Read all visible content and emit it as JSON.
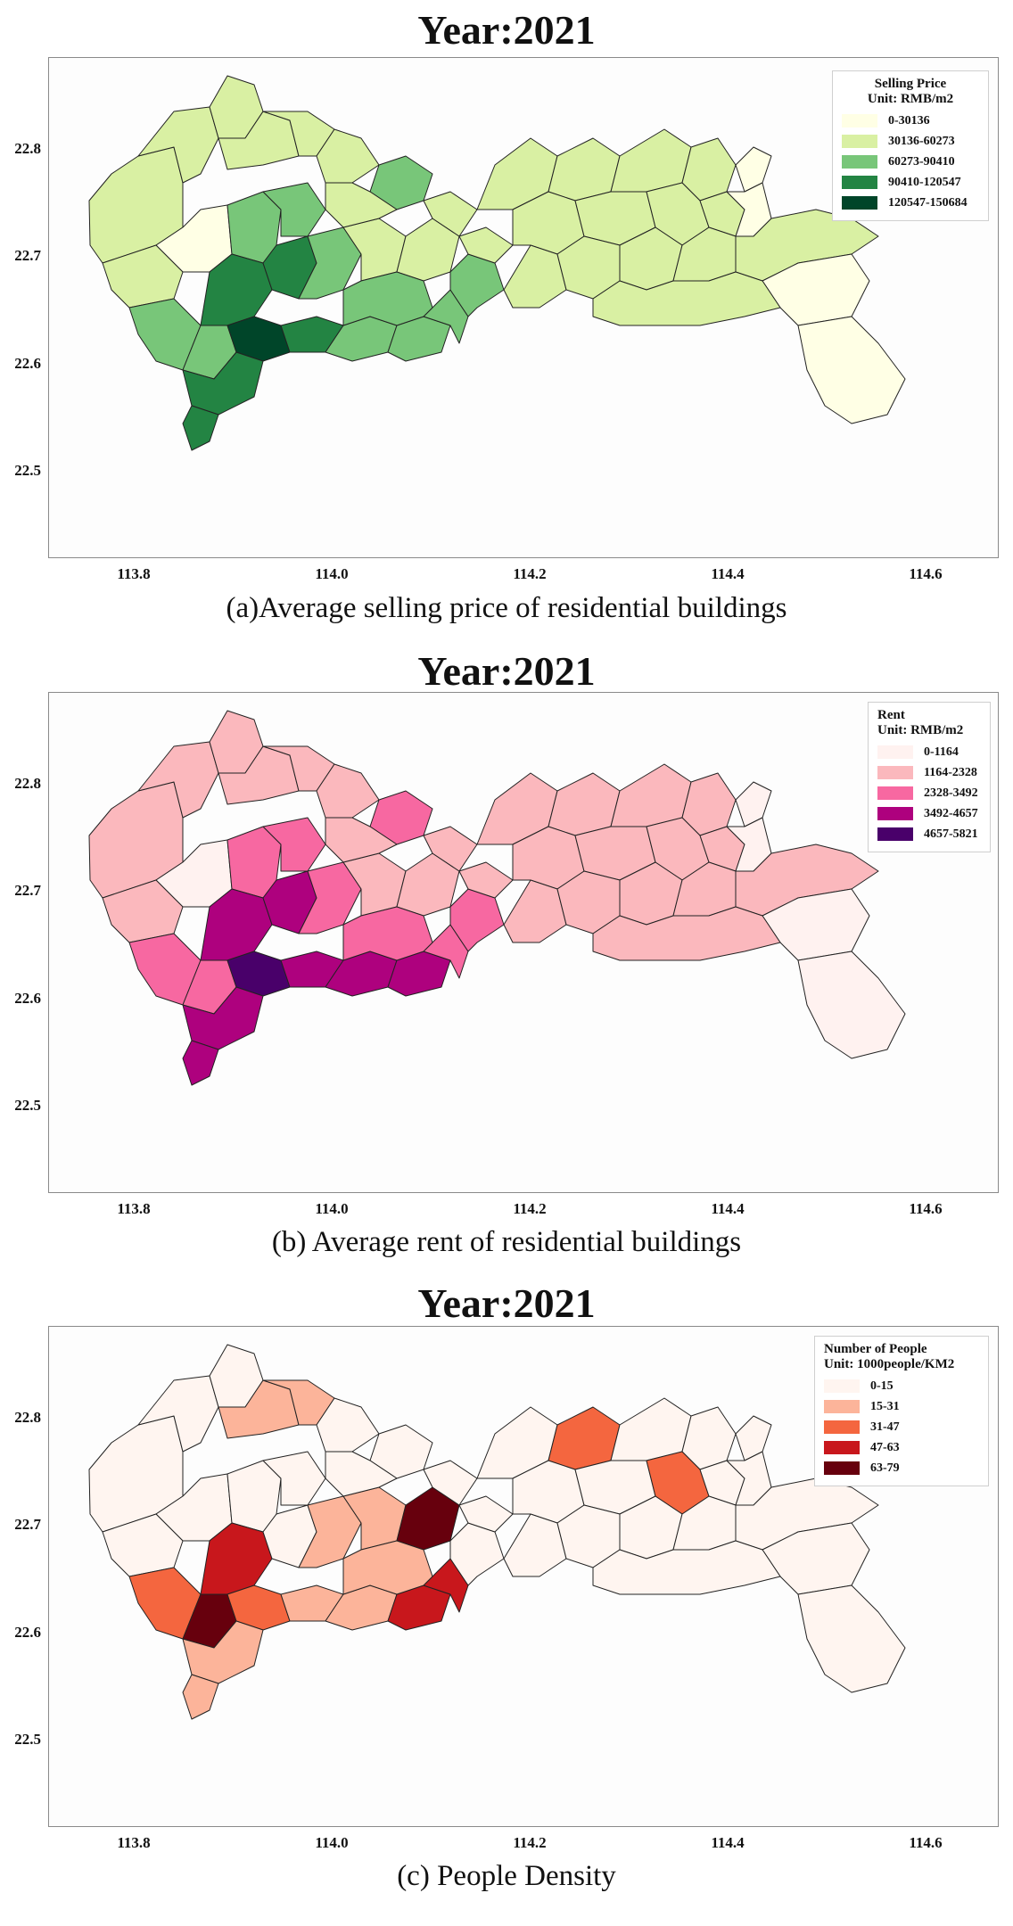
{
  "colors": {
    "boundary": "#222222"
  },
  "maps": [
    {
      "title": "Year:2021",
      "caption": "(a)Average selling price of residential buildings",
      "legend": {
        "title_line1": "Selling Price",
        "title_line2": "Unit: RMB/m2",
        "classes": [
          {
            "label": "0-30136",
            "color": "#ffffe5"
          },
          {
            "label": "30136-60273",
            "color": "#d9f0a3"
          },
          {
            "label": "60273-90410",
            "color": "#78c679"
          },
          {
            "label": "90410-120547",
            "color": "#238443"
          },
          {
            "label": "120547-150684",
            "color": "#004529"
          }
        ]
      },
      "x_ticks": [
        "113.8",
        "114.0",
        "114.2",
        "114.4",
        "114.6"
      ],
      "y_ticks": [
        "22.8",
        "22.7",
        "22.6",
        "22.5"
      ]
    },
    {
      "title": "Year:2021",
      "caption": "(b) Average rent of residential buildings",
      "legend": {
        "title_line1": "Rent",
        "title_line2": "Unit: RMB/m2",
        "classes": [
          {
            "label": "0-1164",
            "color": "#fff2f0"
          },
          {
            "label": "1164-2328",
            "color": "#fbb8bd"
          },
          {
            "label": "2328-3492",
            "color": "#f768a1"
          },
          {
            "label": "3492-4657",
            "color": "#ae017e"
          },
          {
            "label": "4657-5821",
            "color": "#49006a"
          }
        ]
      },
      "x_ticks": [
        "113.8",
        "114.0",
        "114.2",
        "114.4",
        "114.6"
      ],
      "y_ticks": [
        "22.8",
        "22.7",
        "22.6",
        "22.5"
      ]
    },
    {
      "title": "Year:2021",
      "caption": "(c) People Density",
      "legend": {
        "title_line1": "Number of People",
        "title_line2": "Unit: 1000people/KM2",
        "classes": [
          {
            "label": "0-15",
            "color": "#fff5f0"
          },
          {
            "label": "15-31",
            "color": "#fcb49a"
          },
          {
            "label": "31-47",
            "color": "#f4663f"
          },
          {
            "label": "47-63",
            "color": "#c8171c"
          },
          {
            "label": "63-79",
            "color": "#67000d"
          }
        ]
      },
      "x_ticks": [
        "113.8",
        "114.0",
        "114.2",
        "114.4",
        "114.6"
      ],
      "y_ticks": [
        "22.8",
        "22.7",
        "22.6",
        "22.5"
      ]
    }
  ]
}
